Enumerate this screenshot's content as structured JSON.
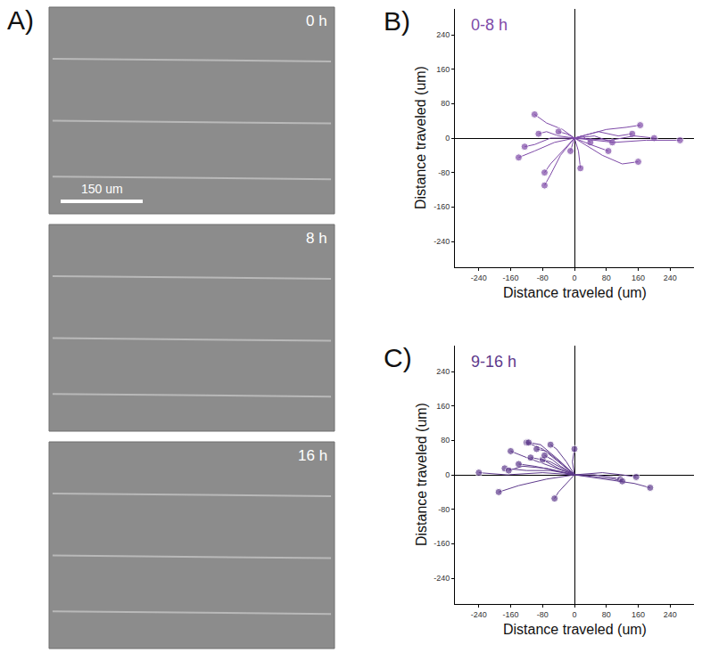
{
  "panel_a": {
    "label": "A)",
    "images": [
      "0 h",
      "8 h",
      "16 h"
    ],
    "scale_bar": "150 um"
  },
  "chart_data": [
    {
      "type": "line",
      "panel": "B)",
      "title": "0-8 h",
      "x_label": "Distance traveled (um)",
      "y_label": "Distance traveled (um)",
      "color": "#7e4aa8",
      "marker": "circle",
      "grid": false,
      "xlim": [
        -300,
        300
      ],
      "ylim": [
        -300,
        300
      ],
      "xticks": [
        -240,
        -160,
        -80,
        0,
        80,
        160,
        240
      ],
      "yticks": [
        -240,
        -160,
        -80,
        0,
        80,
        160,
        240
      ],
      "series": [
        {
          "x": [
            0,
            -30,
            -70,
            -100
          ],
          "y": [
            0,
            20,
            35,
            55
          ]
        },
        {
          "x": [
            0,
            -40,
            -70,
            -90
          ],
          "y": [
            0,
            5,
            15,
            10
          ]
        },
        {
          "x": [
            0,
            -50,
            -100,
            -140
          ],
          "y": [
            0,
            -10,
            -30,
            -45
          ]
        },
        {
          "x": [
            0,
            -60,
            -100,
            -125
          ],
          "y": [
            0,
            0,
            -15,
            -20
          ]
        },
        {
          "x": [
            0,
            -30,
            -60,
            -75
          ],
          "y": [
            0,
            -30,
            -60,
            -80
          ]
        },
        {
          "x": [
            0,
            -35,
            -60,
            -75
          ],
          "y": [
            0,
            -40,
            -85,
            -110
          ]
        },
        {
          "x": [
            0,
            -20,
            -40
          ],
          "y": [
            0,
            10,
            15
          ]
        },
        {
          "x": [
            0,
            -5,
            -10
          ],
          "y": [
            0,
            -15,
            -30
          ]
        },
        {
          "x": [
            0,
            10,
            15
          ],
          "y": [
            0,
            -30,
            -70
          ]
        },
        {
          "x": [
            0,
            20,
            40
          ],
          "y": [
            0,
            5,
            -10
          ]
        },
        {
          "x": [
            0,
            40,
            85
          ],
          "y": [
            0,
            -15,
            -30
          ]
        },
        {
          "x": [
            0,
            50,
            95
          ],
          "y": [
            0,
            5,
            -10
          ]
        },
        {
          "x": [
            0,
            60,
            110,
            145
          ],
          "y": [
            0,
            15,
            5,
            10
          ]
        },
        {
          "x": [
            0,
            80,
            130,
            165
          ],
          "y": [
            0,
            20,
            25,
            30
          ]
        },
        {
          "x": [
            0,
            70,
            120,
            160
          ],
          "y": [
            0,
            -40,
            -60,
            -55
          ]
        },
        {
          "x": [
            0,
            90,
            150,
            200
          ],
          "y": [
            0,
            -5,
            5,
            0
          ]
        },
        {
          "x": [
            0,
            100,
            180,
            265
          ],
          "y": [
            0,
            -10,
            -5,
            -5
          ]
        }
      ]
    },
    {
      "type": "line",
      "panel": "C)",
      "title": "9-16 h",
      "x_label": "Distance traveled (um)",
      "y_label": "Distance traveled (um)",
      "color": "#5e3a8c",
      "marker": "circle",
      "grid": false,
      "xlim": [
        -300,
        300
      ],
      "ylim": [
        -300,
        300
      ],
      "xticks": [
        -240,
        -160,
        -80,
        0,
        80,
        160,
        240
      ],
      "yticks": [
        -240,
        -160,
        -80,
        0,
        80,
        160,
        240
      ],
      "series": [
        {
          "x": [
            0,
            -80,
            -170,
            -240
          ],
          "y": [
            0,
            5,
            0,
            5
          ]
        },
        {
          "x": [
            0,
            -70,
            -140,
            -190
          ],
          "y": [
            0,
            -10,
            -25,
            -40
          ]
        },
        {
          "x": [
            0,
            -60,
            -120,
            -175
          ],
          "y": [
            0,
            10,
            10,
            15
          ]
        },
        {
          "x": [
            0,
            -60,
            -120,
            -160
          ],
          "y": [
            0,
            20,
            40,
            55
          ]
        },
        {
          "x": [
            0,
            -50,
            -100,
            -140
          ],
          "y": [
            0,
            10,
            20,
            25
          ]
        },
        {
          "x": [
            0,
            -40,
            -80,
            -120
          ],
          "y": [
            0,
            30,
            60,
            75
          ]
        },
        {
          "x": [
            0,
            -40,
            -85,
            -115
          ],
          "y": [
            0,
            35,
            70,
            75
          ]
        },
        {
          "x": [
            0,
            -40,
            -80,
            -110
          ],
          "y": [
            0,
            15,
            35,
            40
          ]
        },
        {
          "x": [
            0,
            -30,
            -70,
            -95
          ],
          "y": [
            0,
            25,
            55,
            60
          ]
        },
        {
          "x": [
            0,
            -30,
            -60,
            -80
          ],
          "y": [
            0,
            15,
            30,
            35
          ]
        },
        {
          "x": [
            0,
            -20,
            -45,
            -60
          ],
          "y": [
            0,
            30,
            60,
            70
          ]
        },
        {
          "x": [
            0,
            -20,
            -40,
            -50
          ],
          "y": [
            0,
            -20,
            -40,
            -55
          ]
        },
        {
          "x": [
            0,
            -5,
            0
          ],
          "y": [
            0,
            30,
            60
          ]
        },
        {
          "x": [
            0,
            50,
            90,
            115
          ],
          "y": [
            0,
            0,
            -5,
            -10
          ]
        },
        {
          "x": [
            0,
            60,
            100,
            120
          ],
          "y": [
            0,
            -5,
            -10,
            -15
          ]
        },
        {
          "x": [
            0,
            70,
            120,
            155
          ],
          "y": [
            0,
            5,
            0,
            -5
          ]
        },
        {
          "x": [
            0,
            80,
            150,
            190
          ],
          "y": [
            0,
            -10,
            -20,
            -30
          ]
        },
        {
          "x": [
            0,
            -70,
            -130,
            -165
          ],
          "y": [
            0,
            15,
            20,
            10
          ]
        },
        {
          "x": [
            0,
            -35,
            -55,
            -75
          ],
          "y": [
            0,
            20,
            35,
            45
          ]
        }
      ]
    }
  ]
}
